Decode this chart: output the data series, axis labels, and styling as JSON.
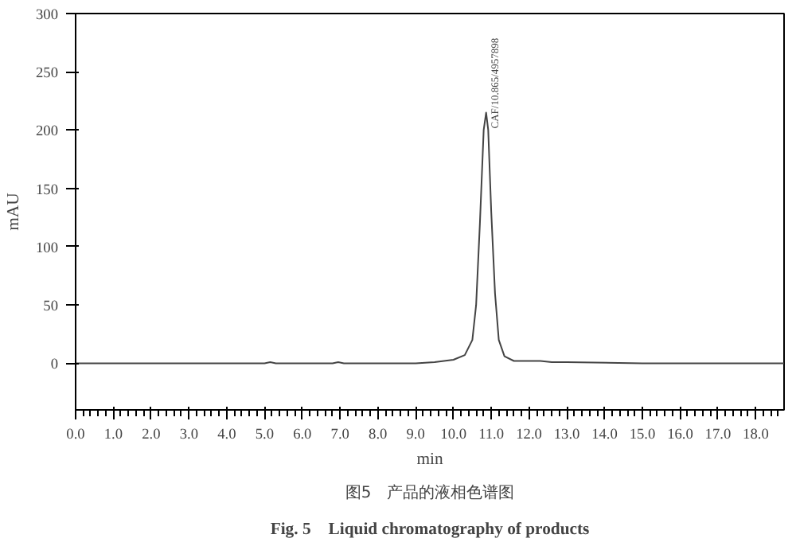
{
  "chart_data": {
    "type": "line",
    "title": "图5　产品的液相色谱图",
    "subtitle": "Fig. 5　Liquid chromatography of products",
    "xlabel": "min",
    "ylabel": "mAU",
    "x": [
      0,
      5.0,
      5.15,
      5.3,
      6.8,
      6.95,
      7.1,
      9.0,
      9.5,
      10.0,
      10.3,
      10.5,
      10.6,
      10.7,
      10.8,
      10.865,
      10.92,
      11.0,
      11.1,
      11.2,
      11.35,
      11.6,
      12.0,
      12.3,
      12.6,
      13.0,
      15.0,
      18.75
    ],
    "series": [
      {
        "color": "#444444",
        "values": [
          0,
          0,
          1,
          0,
          0,
          1,
          0,
          0,
          1,
          3,
          7,
          20,
          50,
          120,
          200,
          215,
          200,
          130,
          60,
          20,
          6,
          2,
          2,
          2,
          1,
          1,
          0,
          0
        ]
      }
    ],
    "xlim": [
      0,
      18.75
    ],
    "ylim": [
      -40,
      300
    ],
    "xticks": [
      {
        "value": 0,
        "label": "0.0"
      },
      {
        "value": 1,
        "label": "1.0"
      },
      {
        "value": 2,
        "label": "2.0"
      },
      {
        "value": 3,
        "label": "3.0"
      },
      {
        "value": 4,
        "label": "4.0"
      },
      {
        "value": 5,
        "label": "5.0"
      },
      {
        "value": 6,
        "label": "6.0"
      },
      {
        "value": 7,
        "label": "7.0"
      },
      {
        "value": 8,
        "label": "8.0"
      },
      {
        "value": 9,
        "label": "9.0"
      },
      {
        "value": 10,
        "label": "10.0"
      },
      {
        "value": 11,
        "label": "11.0"
      },
      {
        "value": 12,
        "label": "12.0"
      },
      {
        "value": 13,
        "label": "13.0"
      },
      {
        "value": 14,
        "label": "14.0"
      },
      {
        "value": 15,
        "label": "15.0"
      },
      {
        "value": 16,
        "label": "16.0"
      },
      {
        "value": 17,
        "label": "17.0"
      },
      {
        "value": 18,
        "label": "18.0"
      }
    ],
    "yticks": [
      0,
      50,
      100,
      150,
      200,
      250,
      300
    ],
    "annotations": [
      {
        "text": "CAF/10.865/4957898",
        "x": 10.865,
        "y": 215
      }
    ],
    "grid": false
  }
}
